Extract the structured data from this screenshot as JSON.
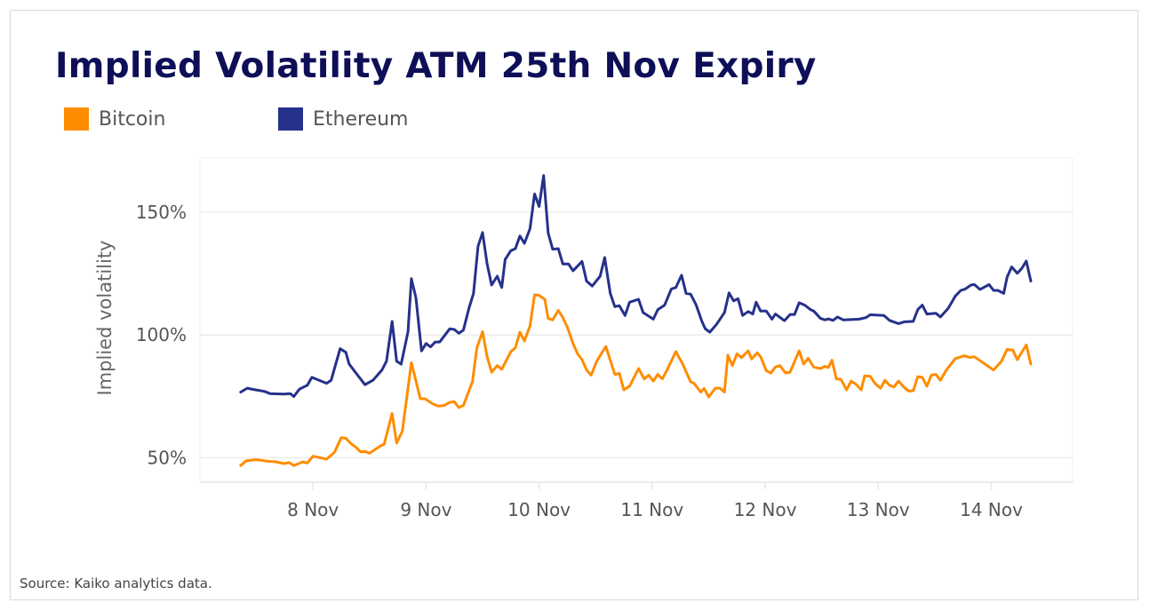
{
  "chart_data": {
    "type": "line",
    "title": "Implied Volatility ATM 25th Nov Expiry",
    "xlabel": "",
    "ylabel": "Implied volatility",
    "x_unit": "day of November",
    "xlim": [
      7.0,
      14.72
    ],
    "ylim": [
      40,
      172
    ],
    "x_ticks": [
      {
        "value": 8,
        "label": "8 Nov"
      },
      {
        "value": 9,
        "label": "9 Nov"
      },
      {
        "value": 10,
        "label": "10 Nov"
      },
      {
        "value": 11,
        "label": "11 Nov"
      },
      {
        "value": 12,
        "label": "12 Nov"
      },
      {
        "value": 13,
        "label": "13 Nov"
      },
      {
        "value": 14,
        "label": "14 Nov"
      }
    ],
    "y_ticks": [
      {
        "value": 50,
        "label": "50%"
      },
      {
        "value": 100,
        "label": "100%"
      },
      {
        "value": 150,
        "label": "150%"
      }
    ],
    "grid": "horizontal",
    "legend_position": "top-left",
    "series": [
      {
        "name": "Bitcoin",
        "color": "#ff8c00",
        "points": [
          [
            7.36,
            46.8
          ],
          [
            7.41,
            48.8
          ],
          [
            7.5,
            49.2
          ],
          [
            7.59,
            48.6
          ],
          [
            7.67,
            48.3
          ],
          [
            7.74,
            47.6
          ],
          [
            7.79,
            48
          ],
          [
            7.83,
            46.8
          ],
          [
            7.91,
            48.3
          ],
          [
            7.95,
            47.8
          ],
          [
            8,
            50.6
          ],
          [
            8.12,
            49.4
          ],
          [
            8.19,
            52.2
          ],
          [
            8.25,
            58.2
          ],
          [
            8.29,
            57.9
          ],
          [
            8.34,
            55.5
          ],
          [
            8.38,
            54.3
          ],
          [
            8.42,
            52.4
          ],
          [
            8.46,
            52.5
          ],
          [
            8.5,
            51.8
          ],
          [
            8.59,
            54.6
          ],
          [
            8.63,
            55.5
          ],
          [
            8.7,
            68
          ],
          [
            8.74,
            56
          ],
          [
            8.79,
            60.8
          ],
          [
            8.87,
            88.7
          ],
          [
            8.95,
            74
          ],
          [
            8.99,
            74
          ],
          [
            9.06,
            71.9
          ],
          [
            9.11,
            71
          ],
          [
            9.16,
            71.3
          ],
          [
            9.21,
            72.5
          ],
          [
            9.25,
            72.8
          ],
          [
            9.29,
            70.4
          ],
          [
            9.33,
            71.3
          ],
          [
            9.41,
            80.9
          ],
          [
            9.45,
            94.7
          ],
          [
            9.5,
            101.3
          ],
          [
            9.54,
            91.1
          ],
          [
            9.58,
            84.8
          ],
          [
            9.63,
            87.5
          ],
          [
            9.67,
            86
          ],
          [
            9.75,
            93.2
          ],
          [
            9.79,
            94.7
          ],
          [
            9.83,
            101.1
          ],
          [
            9.87,
            97.5
          ],
          [
            9.92,
            103.7
          ],
          [
            9.96,
            116.3
          ],
          [
            10,
            116.1
          ],
          [
            10.05,
            114.5
          ],
          [
            10.08,
            106.7
          ],
          [
            10.12,
            106.1
          ],
          [
            10.17,
            110
          ],
          [
            10.21,
            107.1
          ],
          [
            10.25,
            103.1
          ],
          [
            10.3,
            96.5
          ],
          [
            10.34,
            92.3
          ],
          [
            10.38,
            89.9
          ],
          [
            10.42,
            85.7
          ],
          [
            10.46,
            83.6
          ],
          [
            10.51,
            89.3
          ],
          [
            10.59,
            95.3
          ],
          [
            10.67,
            83.9
          ],
          [
            10.71,
            84.3
          ],
          [
            10.75,
            77.6
          ],
          [
            10.8,
            79.1
          ],
          [
            10.88,
            86.3
          ],
          [
            10.93,
            82.1
          ],
          [
            10.97,
            83.6
          ],
          [
            11.01,
            81.2
          ],
          [
            11.05,
            83.9
          ],
          [
            11.09,
            82.1
          ],
          [
            11.13,
            85.5
          ],
          [
            11.21,
            93.2
          ],
          [
            11.27,
            88.1
          ],
          [
            11.34,
            80.9
          ],
          [
            11.37,
            80.3
          ],
          [
            11.43,
            76.7
          ],
          [
            11.46,
            78.2
          ],
          [
            11.5,
            74.7
          ],
          [
            11.56,
            78.3
          ],
          [
            11.6,
            78.3
          ],
          [
            11.64,
            76.7
          ],
          [
            11.67,
            91.7
          ],
          [
            11.71,
            87.5
          ],
          [
            11.75,
            92.3
          ],
          [
            11.79,
            90.7
          ],
          [
            11.85,
            93.5
          ],
          [
            11.88,
            90.2
          ],
          [
            11.93,
            92.7
          ],
          [
            11.96,
            91.1
          ],
          [
            12.01,
            85.4
          ],
          [
            12.05,
            84.5
          ],
          [
            12.09,
            86.9
          ],
          [
            12.13,
            87.5
          ],
          [
            12.18,
            84.5
          ],
          [
            12.22,
            84.8
          ],
          [
            12.3,
            93.5
          ],
          [
            12.34,
            88.1
          ],
          [
            12.38,
            90.5
          ],
          [
            12.43,
            86.9
          ],
          [
            12.49,
            86.3
          ],
          [
            12.53,
            87.2
          ],
          [
            12.56,
            86.7
          ],
          [
            12.59,
            89.7
          ],
          [
            12.63,
            82.1
          ],
          [
            12.67,
            81.9
          ],
          [
            12.72,
            77.6
          ],
          [
            12.76,
            81.2
          ],
          [
            12.8,
            80
          ],
          [
            12.85,
            77.6
          ],
          [
            12.88,
            83.3
          ],
          [
            12.93,
            83.1
          ],
          [
            12.97,
            80.3
          ],
          [
            13.02,
            78.3
          ],
          [
            13.06,
            81.5
          ],
          [
            13.1,
            79.5
          ],
          [
            13.14,
            78.8
          ],
          [
            13.18,
            81.2
          ],
          [
            13.23,
            78.5
          ],
          [
            13.27,
            77.1
          ],
          [
            13.31,
            77.3
          ],
          [
            13.35,
            83
          ],
          [
            13.39,
            82.7
          ],
          [
            13.43,
            79.1
          ],
          [
            13.47,
            83.6
          ],
          [
            13.51,
            83.9
          ],
          [
            13.55,
            81.5
          ],
          [
            13.6,
            85.5
          ],
          [
            13.68,
            90.3
          ],
          [
            13.76,
            91.5
          ],
          [
            13.81,
            90.8
          ],
          [
            13.85,
            91.1
          ],
          [
            14.02,
            85.7
          ],
          [
            14.09,
            89.3
          ],
          [
            14.14,
            94.1
          ],
          [
            14.19,
            93.8
          ],
          [
            14.23,
            89.9
          ],
          [
            14.31,
            95.9
          ],
          [
            14.35,
            88.1
          ]
        ]
      },
      {
        "name": "Ethereum",
        "color": "#25318a",
        "points": [
          [
            7.36,
            76.7
          ],
          [
            7.42,
            78.3
          ],
          [
            7.47,
            77.8
          ],
          [
            7.57,
            77
          ],
          [
            7.62,
            76.1
          ],
          [
            7.74,
            75.9
          ],
          [
            7.8,
            76.1
          ],
          [
            7.83,
            74.9
          ],
          [
            7.88,
            77.9
          ],
          [
            7.95,
            79.5
          ],
          [
            7.99,
            82.7
          ],
          [
            8.12,
            80.3
          ],
          [
            8.16,
            81.5
          ],
          [
            8.24,
            94.4
          ],
          [
            8.29,
            92.9
          ],
          [
            8.32,
            88.1
          ],
          [
            8.38,
            84.5
          ],
          [
            8.46,
            79.7
          ],
          [
            8.53,
            81.5
          ],
          [
            8.61,
            85.7
          ],
          [
            8.65,
            89.3
          ],
          [
            8.7,
            105.5
          ],
          [
            8.74,
            89.3
          ],
          [
            8.78,
            88.1
          ],
          [
            8.84,
            101.3
          ],
          [
            8.87,
            122.9
          ],
          [
            8.91,
            115.1
          ],
          [
            8.96,
            93.5
          ],
          [
            9,
            96.5
          ],
          [
            9.04,
            95.1
          ],
          [
            9.08,
            97.1
          ],
          [
            9.12,
            97.1
          ],
          [
            9.18,
            100.7
          ],
          [
            9.21,
            102.5
          ],
          [
            9.25,
            102.2
          ],
          [
            9.29,
            100.7
          ],
          [
            9.33,
            101.9
          ],
          [
            9.38,
            110.9
          ],
          [
            9.42,
            116.9
          ],
          [
            9.46,
            136.1
          ],
          [
            9.5,
            141.7
          ],
          [
            9.54,
            128.9
          ],
          [
            9.58,
            120.3
          ],
          [
            9.63,
            123.9
          ],
          [
            9.67,
            119.3
          ],
          [
            9.7,
            130.7
          ],
          [
            9.75,
            134.3
          ],
          [
            9.79,
            135.1
          ],
          [
            9.83,
            140.3
          ],
          [
            9.87,
            137.3
          ],
          [
            9.92,
            143.3
          ],
          [
            9.96,
            157.4
          ],
          [
            10,
            152.3
          ],
          [
            10.04,
            164.9
          ],
          [
            10.08,
            141.5
          ],
          [
            10.12,
            134.9
          ],
          [
            10.17,
            135.1
          ],
          [
            10.21,
            128.9
          ],
          [
            10.26,
            128.9
          ],
          [
            10.3,
            126.1
          ],
          [
            10.38,
            129.9
          ],
          [
            10.42,
            121.9
          ],
          [
            10.47,
            119.9
          ],
          [
            10.54,
            123.9
          ],
          [
            10.58,
            131.5
          ],
          [
            10.63,
            116.9
          ],
          [
            10.67,
            111.5
          ],
          [
            10.71,
            111.9
          ],
          [
            10.76,
            107.9
          ],
          [
            10.8,
            113.3
          ],
          [
            10.88,
            114.5
          ],
          [
            10.92,
            109.1
          ],
          [
            11.01,
            106.4
          ],
          [
            11.05,
            110.3
          ],
          [
            11.11,
            112.1
          ],
          [
            11.17,
            118.7
          ],
          [
            11.21,
            119.3
          ],
          [
            11.26,
            124.3
          ],
          [
            11.3,
            116.9
          ],
          [
            11.34,
            116.6
          ],
          [
            11.39,
            112.1
          ],
          [
            11.44,
            105.5
          ],
          [
            11.47,
            102.5
          ],
          [
            11.51,
            101.1
          ],
          [
            11.57,
            104.3
          ],
          [
            11.64,
            109.1
          ],
          [
            11.68,
            117.1
          ],
          [
            11.72,
            113.9
          ],
          [
            11.76,
            114.7
          ],
          [
            11.8,
            107.9
          ],
          [
            11.85,
            109.5
          ],
          [
            11.89,
            108.5
          ],
          [
            11.92,
            113.3
          ],
          [
            11.96,
            109.7
          ],
          [
            12.01,
            109.7
          ],
          [
            12.06,
            106.4
          ],
          [
            12.09,
            108.5
          ],
          [
            12.17,
            105.8
          ],
          [
            12.22,
            108.3
          ],
          [
            12.26,
            108.3
          ],
          [
            12.3,
            113.1
          ],
          [
            12.35,
            112.1
          ],
          [
            12.4,
            110.3
          ],
          [
            12.43,
            109.7
          ],
          [
            12.49,
            106.7
          ],
          [
            12.53,
            106.1
          ],
          [
            12.56,
            106.5
          ],
          [
            12.6,
            105.9
          ],
          [
            12.64,
            107.3
          ],
          [
            12.69,
            106.1
          ],
          [
            12.83,
            106.4
          ],
          [
            12.89,
            107
          ],
          [
            12.93,
            108.2
          ],
          [
            13.05,
            107.9
          ],
          [
            13.1,
            105.9
          ],
          [
            13.18,
            104.6
          ],
          [
            13.23,
            105.3
          ],
          [
            13.31,
            105.5
          ],
          [
            13.35,
            110.3
          ],
          [
            13.39,
            112.1
          ],
          [
            13.43,
            108.5
          ],
          [
            13.51,
            108.8
          ],
          [
            13.55,
            107.3
          ],
          [
            13.62,
            110.9
          ],
          [
            13.68,
            115.7
          ],
          [
            13.73,
            118.1
          ],
          [
            13.77,
            118.7
          ],
          [
            13.82,
            120.3
          ],
          [
            13.85,
            120.5
          ],
          [
            13.9,
            118.5
          ],
          [
            13.98,
            120.5
          ],
          [
            14.02,
            118.1
          ],
          [
            14.06,
            118.1
          ],
          [
            14.11,
            116.9
          ],
          [
            14.14,
            123.5
          ],
          [
            14.18,
            127.7
          ],
          [
            14.23,
            125.1
          ],
          [
            14.27,
            127.1
          ],
          [
            14.31,
            130.1
          ],
          [
            14.35,
            121.9
          ]
        ]
      }
    ],
    "source": "Source: Kaiko analytics data."
  }
}
